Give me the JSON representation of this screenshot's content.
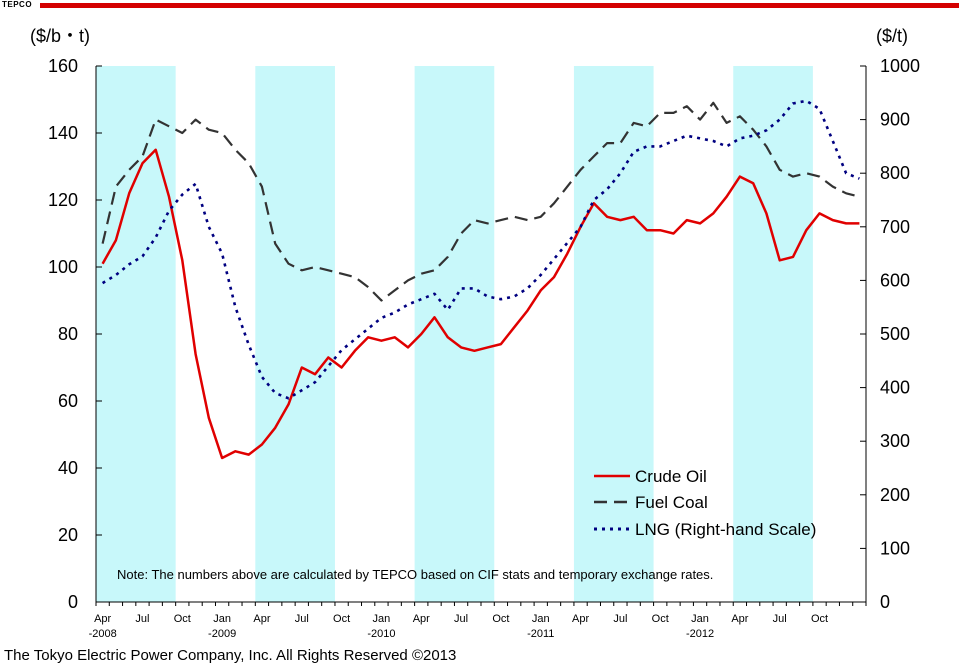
{
  "header": {
    "logo_text": "TEPCO"
  },
  "footer": {
    "copyright": "The Tokyo Electric Power Company, Inc.  All Rights Reserved ©2013"
  },
  "chart_data": {
    "type": "line",
    "title": "",
    "left_axis_label": "($/b・t)",
    "right_axis_label": "($/t)",
    "ylim_left": [
      0,
      160
    ],
    "yticks_left": [
      "0",
      "20",
      "40",
      "60",
      "80",
      "100",
      "120",
      "140",
      "160"
    ],
    "ylim_right": [
      0,
      1000
    ],
    "yticks_right": [
      "0",
      "100",
      "200",
      "300",
      "400",
      "500",
      "600",
      "700",
      "800",
      "900",
      "1000"
    ],
    "x_months": 58,
    "x_tick_labels": [
      {
        "i": 0,
        "l1": "Apr",
        "l2": "-2008"
      },
      {
        "i": 3,
        "l1": "Jul",
        "l2": ""
      },
      {
        "i": 6,
        "l1": "Oct",
        "l2": ""
      },
      {
        "i": 9,
        "l1": "Jan",
        "l2": "-2009"
      },
      {
        "i": 12,
        "l1": "Apr",
        "l2": ""
      },
      {
        "i": 15,
        "l1": "Jul",
        "l2": ""
      },
      {
        "i": 18,
        "l1": "Oct",
        "l2": ""
      },
      {
        "i": 21,
        "l1": "Jan",
        "l2": "-2010"
      },
      {
        "i": 24,
        "l1": "Apr",
        "l2": ""
      },
      {
        "i": 27,
        "l1": "Jul",
        "l2": ""
      },
      {
        "i": 30,
        "l1": "Oct",
        "l2": ""
      },
      {
        "i": 33,
        "l1": "Jan",
        "l2": "-2011"
      },
      {
        "i": 36,
        "l1": "Apr",
        "l2": ""
      },
      {
        "i": 39,
        "l1": "Jul",
        "l2": ""
      },
      {
        "i": 42,
        "l1": "Oct",
        "l2": ""
      },
      {
        "i": 45,
        "l1": "Jan",
        "l2": "-2012"
      },
      {
        "i": 48,
        "l1": "Apr",
        "l2": ""
      },
      {
        "i": 51,
        "l1": "Jul",
        "l2": ""
      },
      {
        "i": 54,
        "l1": "Oct",
        "l2": ""
      }
    ],
    "shaded_periods": [
      [
        0,
        6
      ],
      [
        12,
        18
      ],
      [
        24,
        30
      ],
      [
        36,
        42
      ],
      [
        48,
        54
      ]
    ],
    "shade_color": "#c8f8fa",
    "series": [
      {
        "name": "Crude Oil",
        "axis": "left",
        "color": "#e00000",
        "style": "solid",
        "values": [
          101,
          108,
          122,
          131,
          135,
          121,
          102,
          74,
          55,
          43,
          45,
          44,
          47,
          52,
          59,
          70,
          68,
          73,
          70,
          75,
          79,
          78,
          79,
          76,
          80,
          85,
          79,
          76,
          75,
          76,
          77,
          82,
          87,
          93,
          97,
          104,
          112,
          119,
          115,
          114,
          115,
          111,
          111,
          110,
          114,
          113,
          116,
          121,
          127,
          125,
          116,
          102,
          103,
          111,
          116,
          114,
          113,
          113
        ]
      },
      {
        "name": "Fuel Coal",
        "axis": "left",
        "color": "#333333",
        "style": "dash",
        "values": [
          107,
          124,
          129,
          133,
          144,
          142,
          140,
          144,
          141,
          140,
          135,
          131,
          124,
          107,
          101,
          99,
          100,
          99,
          98,
          97,
          94,
          90,
          93,
          96,
          98,
          99,
          103,
          110,
          114,
          113,
          114,
          115,
          114,
          115,
          119,
          124,
          129,
          133,
          137,
          137,
          143,
          142,
          146,
          146,
          148,
          144,
          149,
          143,
          145,
          141,
          136,
          129,
          127,
          128,
          127,
          124,
          122,
          121
        ]
      },
      {
        "name": "LNG (Right-hand Scale)",
        "axis": "right",
        "color": "#000080",
        "style": "dot",
        "values": [
          595,
          610,
          630,
          645,
          680,
          730,
          760,
          780,
          700,
          650,
          550,
          480,
          420,
          390,
          380,
          395,
          410,
          440,
          470,
          490,
          510,
          530,
          540,
          555,
          565,
          575,
          545,
          585,
          585,
          570,
          565,
          570,
          585,
          610,
          640,
          670,
          700,
          750,
          770,
          800,
          840,
          850,
          850,
          860,
          870,
          865,
          860,
          850,
          865,
          870,
          880,
          900,
          930,
          935,
          920,
          860,
          800,
          790
        ]
      }
    ],
    "legend_position": "bottom-right",
    "note": "Note: The numbers above are calculated by TEPCO based on CIF stats and temporary exchange rates."
  }
}
